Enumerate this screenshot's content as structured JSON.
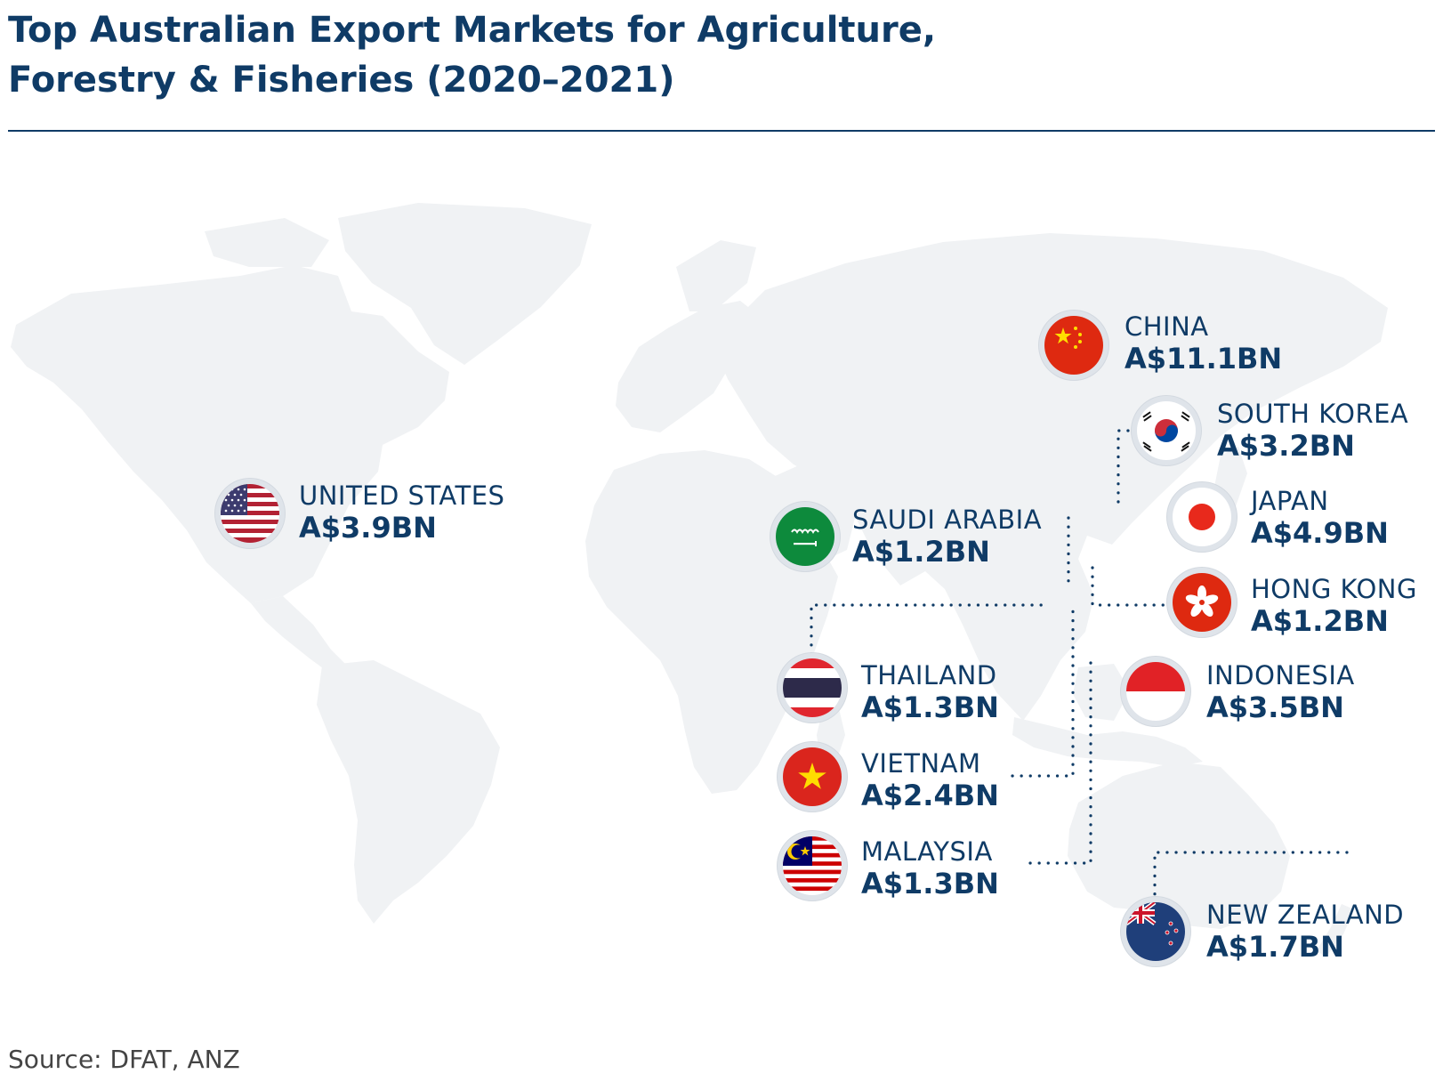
{
  "title_line1": "Top Australian Export Markets for Agriculture,",
  "title_line2": "Forestry & Fisheries (2020–2021)",
  "source": "Source: DFAT, ANZ",
  "colors": {
    "navy": "#0f3b66",
    "land": "#f0f2f4"
  },
  "markets": {
    "china": {
      "country": "CHINA",
      "value": "A$11.1BN",
      "flag": "china-flag-icon"
    },
    "south_korea": {
      "country": "SOUTH KOREA",
      "value": "A$3.2BN",
      "flag": "south-korea-flag-icon"
    },
    "japan": {
      "country": "JAPAN",
      "value": "A$4.9BN",
      "flag": "japan-flag-icon"
    },
    "hong_kong": {
      "country": "HONG KONG",
      "value": "A$1.2BN",
      "flag": "hong-kong-flag-icon"
    },
    "indonesia": {
      "country": "INDONESIA",
      "value": "A$3.5BN",
      "flag": "indonesia-flag-icon"
    },
    "new_zealand": {
      "country": "NEW ZEALAND",
      "value": "A$1.7BN",
      "flag": "new-zealand-flag-icon"
    },
    "united_states": {
      "country": "UNITED STATES",
      "value": "A$3.9BN",
      "flag": "usa-flag-icon"
    },
    "saudi_arabia": {
      "country": "SAUDI ARABIA",
      "value": "A$1.2BN",
      "flag": "saudi-arabia-flag-icon"
    },
    "thailand": {
      "country": "THAILAND",
      "value": "A$1.3BN",
      "flag": "thailand-flag-icon"
    },
    "vietnam": {
      "country": "VIETNAM",
      "value": "A$2.4BN",
      "flag": "vietnam-flag-icon"
    },
    "malaysia": {
      "country": "MALAYSIA",
      "value": "A$1.3BN",
      "flag": "malaysia-flag-icon"
    }
  }
}
